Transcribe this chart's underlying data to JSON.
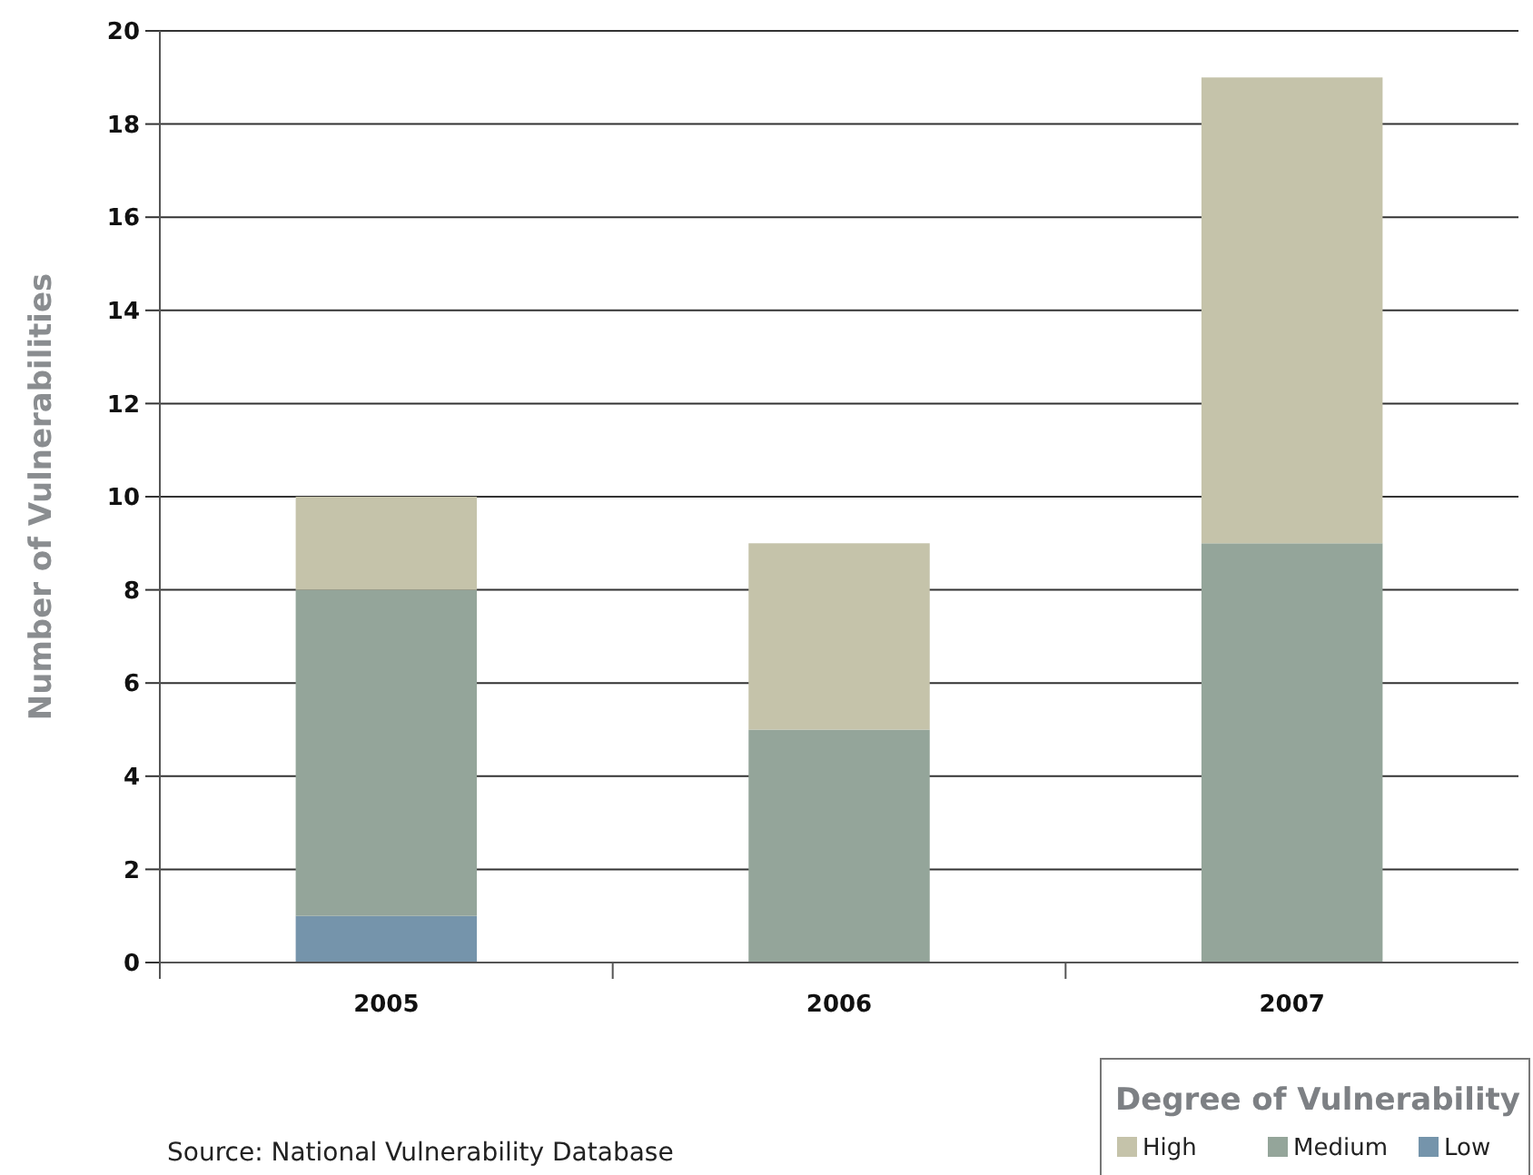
{
  "chart_data": {
    "type": "bar",
    "stacked": true,
    "ylabel": "Number of Vulnerabilities",
    "legend_title": "Degree of Vulnerability",
    "legend": "bottom right",
    "grid": "y",
    "categories": [
      "2005",
      "2006",
      "2007"
    ],
    "series": [
      {
        "name": "Low",
        "color": "#7594ab",
        "values": [
          1,
          0,
          0
        ]
      },
      {
        "name": "Medium",
        "color": "#94a59a",
        "values": [
          7,
          5,
          9
        ]
      },
      {
        "name": "High",
        "color": "#c5c3aa",
        "values": [
          2,
          4,
          10
        ]
      }
    ],
    "ylim": [
      0,
      20
    ],
    "yticks": [
      0,
      2,
      4,
      6,
      8,
      10,
      12,
      14,
      16,
      18,
      20
    ],
    "annotations": [
      "Source: National Vulnerability Database"
    ]
  }
}
